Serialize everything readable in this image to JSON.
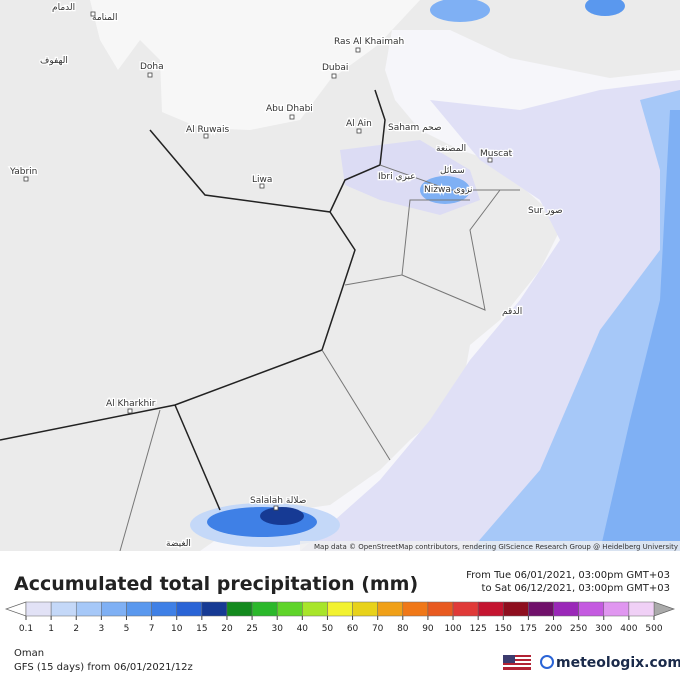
{
  "map": {
    "places": [
      "الدمام",
      "المنامة",
      "Doha",
      "الهفوف",
      "Ras Al Khaimah",
      "Dubai",
      "Abu Dhabi",
      "Al Ruwais",
      "Al Ain",
      "Saham صحم",
      "Yabrin",
      "Liwa",
      "المصنعة",
      "Muscat",
      "Ibri عبري",
      "سمائل",
      "Nizwa نزوى",
      "Sur صور",
      "الدقم",
      "Al Kharkhir",
      "Salalah صلالة",
      "الغيضة"
    ],
    "attribution": "Map data © OpenStreetMap contributors, rendering GIScience Research Group @ Heidelberg University"
  },
  "legend": {
    "title": "Accumulated total precipitation (mm)",
    "from": "From Tue 06/01/2021, 03:00pm GMT+03",
    "to": "to Sat 06/12/2021, 03:00pm GMT+03",
    "ticks": [
      "0.1",
      "1",
      "2",
      "3",
      "5",
      "7",
      "10",
      "15",
      "20",
      "25",
      "30",
      "40",
      "50",
      "60",
      "70",
      "80",
      "90",
      "100",
      "125",
      "150",
      "175",
      "200",
      "250",
      "300",
      "400",
      "500"
    ],
    "colors": [
      "#e2e2f6",
      "#c4d8f8",
      "#a6c8f8",
      "#7fb0f4",
      "#5a98ee",
      "#3f80e6",
      "#2a64d6",
      "#163a94",
      "#138a1e",
      "#2bb82b",
      "#5fd42a",
      "#a8e52a",
      "#f2f230",
      "#e8d21a",
      "#f0a018",
      "#f07818",
      "#e85a20",
      "#e03a38",
      "#c41430",
      "#8e0e1e",
      "#70106a",
      "#9a28b8",
      "#c45ae0",
      "#e096f0",
      "#f0d0f6"
    ],
    "low_color": "#ffffff",
    "high_color": "#aaaaaa"
  },
  "footer": {
    "region": "Oman",
    "model": "GFS (15 days) from 06/01/2021/12z",
    "brand": "meteologix.com"
  }
}
